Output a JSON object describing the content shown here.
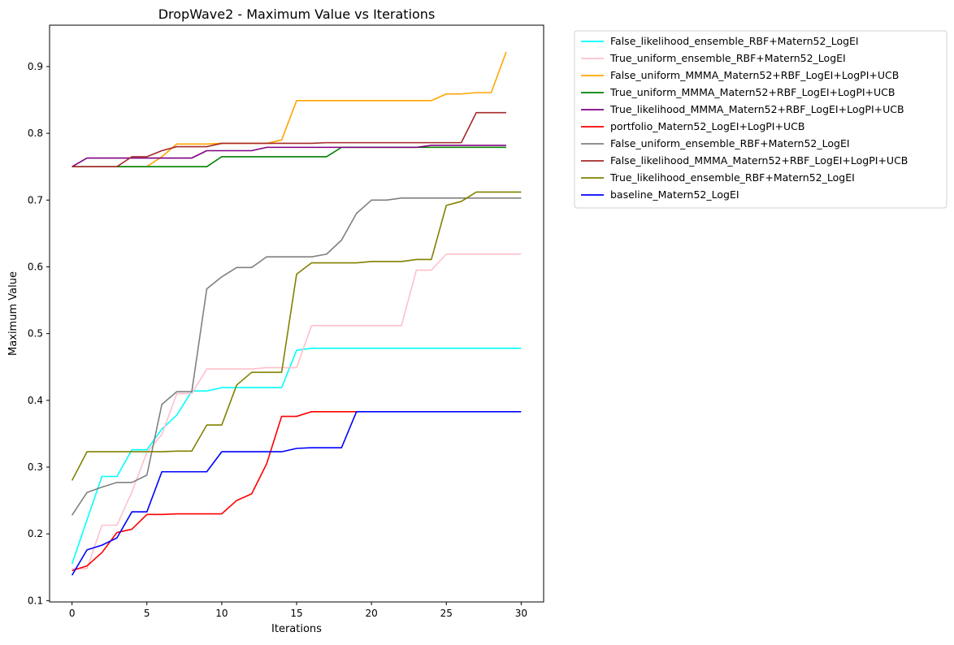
{
  "chart_data": {
    "type": "line",
    "title": "DropWave2 - Maximum Value vs Iterations",
    "xlabel": "Iterations",
    "ylabel": "Maximum Value",
    "xlim": [
      -1.5,
      31.5
    ],
    "ylim": [
      0.098,
      0.962
    ],
    "xticks": [
      0,
      5,
      10,
      15,
      20,
      25,
      30
    ],
    "yticks": [
      0.1,
      0.2,
      0.3,
      0.4,
      0.5,
      0.6,
      0.7,
      0.8,
      0.9
    ],
    "ytick_labels": [
      "0.1",
      "0.2",
      "0.3",
      "0.4",
      "0.5",
      "0.6",
      "0.7",
      "0.8",
      "0.9"
    ],
    "grid": false,
    "legend_position": "outside upper right",
    "series": [
      {
        "name": "False_likelihood_ensemble_RBF+Matern52_LogEI",
        "color": "#00ffff",
        "x": [
          0,
          1,
          2,
          3,
          4,
          5,
          6,
          7,
          8,
          9,
          10,
          11,
          12,
          13,
          14,
          15,
          16,
          17,
          18,
          19,
          20,
          21,
          22,
          23,
          24,
          25,
          26,
          27,
          28,
          29,
          30
        ],
        "values": [
          0.155,
          0.221,
          0.286,
          0.286,
          0.326,
          0.326,
          0.357,
          0.378,
          0.414,
          0.414,
          0.419,
          0.419,
          0.419,
          0.419,
          0.419,
          0.475,
          0.478,
          0.478,
          0.478,
          0.478,
          0.478,
          0.478,
          0.478,
          0.478,
          0.478,
          0.478,
          0.478,
          0.478,
          0.478,
          0.478,
          0.478
        ]
      },
      {
        "name": "True_uniform_ensemble_RBF+Matern52_LogEI",
        "color": "#ffc0cb",
        "x": [
          0,
          1,
          2,
          3,
          4,
          5,
          6,
          7,
          8,
          9,
          10,
          11,
          12,
          13,
          14,
          15,
          16,
          17,
          18,
          19,
          20,
          21,
          22,
          23,
          24,
          25,
          26,
          27,
          28,
          29,
          30
        ],
        "values": [
          0.148,
          0.148,
          0.213,
          0.213,
          0.263,
          0.322,
          0.349,
          0.41,
          0.41,
          0.447,
          0.447,
          0.447,
          0.447,
          0.449,
          0.449,
          0.449,
          0.512,
          0.512,
          0.512,
          0.512,
          0.512,
          0.512,
          0.512,
          0.595,
          0.595,
          0.619,
          0.619,
          0.619,
          0.619,
          0.619,
          0.619
        ]
      },
      {
        "name": "False_uniform_MMMA_Matern52+RBF_LogEI+LogPI+UCB",
        "color": "#ffa500",
        "x": [
          0,
          1,
          2,
          3,
          4,
          5,
          6,
          7,
          8,
          9,
          10,
          11,
          12,
          13,
          14,
          15,
          16,
          17,
          18,
          19,
          20,
          21,
          22,
          23,
          24,
          25,
          26,
          27,
          28,
          29
        ],
        "values": [
          0.75,
          0.75,
          0.75,
          0.75,
          0.75,
          0.75,
          0.765,
          0.784,
          0.784,
          0.784,
          0.785,
          0.785,
          0.785,
          0.785,
          0.79,
          0.849,
          0.849,
          0.849,
          0.849,
          0.849,
          0.849,
          0.849,
          0.849,
          0.849,
          0.849,
          0.859,
          0.859,
          0.861,
          0.861,
          0.922
        ]
      },
      {
        "name": "True_uniform_MMMA_Matern52+RBF_LogEI+LogPI+UCB",
        "color": "#008000",
        "x": [
          0,
          1,
          2,
          3,
          4,
          5,
          6,
          7,
          8,
          9,
          10,
          11,
          12,
          13,
          14,
          15,
          16,
          17,
          18,
          19,
          20,
          21,
          22,
          23,
          24,
          25,
          26,
          27,
          28,
          29
        ],
        "values": [
          0.75,
          0.75,
          0.75,
          0.75,
          0.75,
          0.75,
          0.75,
          0.75,
          0.75,
          0.75,
          0.765,
          0.765,
          0.765,
          0.765,
          0.765,
          0.765,
          0.765,
          0.765,
          0.779,
          0.779,
          0.779,
          0.779,
          0.779,
          0.779,
          0.779,
          0.779,
          0.779,
          0.779,
          0.779,
          0.779
        ]
      },
      {
        "name": "True_likelihood_MMMA_Matern52+RBF_LogEI+LogPI+UCB",
        "color": "#800080",
        "x": [
          0,
          1,
          2,
          3,
          4,
          5,
          6,
          7,
          8,
          9,
          10,
          11,
          12,
          13,
          14,
          15,
          16,
          17,
          18,
          19,
          20,
          21,
          22,
          23,
          24,
          25,
          26,
          27,
          28,
          29
        ],
        "values": [
          0.75,
          0.763,
          0.763,
          0.763,
          0.763,
          0.763,
          0.763,
          0.763,
          0.763,
          0.774,
          0.774,
          0.774,
          0.774,
          0.779,
          0.779,
          0.779,
          0.779,
          0.779,
          0.779,
          0.779,
          0.779,
          0.779,
          0.779,
          0.779,
          0.782,
          0.782,
          0.782,
          0.782,
          0.782,
          0.782
        ]
      },
      {
        "name": "portfolio_Matern52_LogEI+LogPI+UCB",
        "color": "#ff0000",
        "x": [
          0,
          1,
          2,
          3,
          4,
          5,
          6,
          7,
          8,
          9,
          10,
          11,
          12,
          13,
          14,
          15,
          16,
          17,
          18,
          19
        ],
        "values": [
          0.145,
          0.152,
          0.172,
          0.202,
          0.207,
          0.229,
          0.229,
          0.23,
          0.23,
          0.23,
          0.23,
          0.25,
          0.26,
          0.305,
          0.376,
          0.376,
          0.383,
          0.383,
          0.383,
          0.383
        ]
      },
      {
        "name": "False_uniform_ensemble_RBF+Matern52_LogEI",
        "color": "#808080",
        "x": [
          0,
          1,
          2,
          3,
          4,
          5,
          6,
          7,
          8,
          9,
          10,
          11,
          12,
          13,
          14,
          15,
          16,
          17,
          18,
          19,
          20,
          21,
          22,
          23,
          24,
          25,
          26,
          27,
          28,
          29,
          30
        ],
        "values": [
          0.228,
          0.262,
          0.27,
          0.277,
          0.277,
          0.288,
          0.394,
          0.413,
          0.413,
          0.567,
          0.585,
          0.599,
          0.599,
          0.615,
          0.615,
          0.615,
          0.615,
          0.619,
          0.64,
          0.68,
          0.7,
          0.7,
          0.703,
          0.703,
          0.703,
          0.703,
          0.703,
          0.703,
          0.703,
          0.703,
          0.703
        ]
      },
      {
        "name": "False_likelihood_MMMA_Matern52+RBF_LogEI+LogPI+UCB",
        "color": "#a52a2a",
        "x": [
          0,
          1,
          2,
          3,
          4,
          5,
          6,
          7,
          8,
          9,
          10,
          11,
          12,
          13,
          14,
          15,
          16,
          17,
          18,
          19,
          20,
          21,
          22,
          23,
          24,
          25,
          26,
          27,
          28,
          29
        ],
        "values": [
          0.75,
          0.75,
          0.75,
          0.75,
          0.765,
          0.765,
          0.774,
          0.78,
          0.78,
          0.78,
          0.785,
          0.785,
          0.785,
          0.785,
          0.785,
          0.785,
          0.785,
          0.786,
          0.786,
          0.786,
          0.786,
          0.786,
          0.786,
          0.786,
          0.786,
          0.786,
          0.786,
          0.831,
          0.831,
          0.831
        ]
      },
      {
        "name": "True_likelihood_ensemble_RBF+Matern52_LogEI",
        "color": "#808000",
        "x": [
          0,
          1,
          2,
          3,
          4,
          5,
          6,
          7,
          8,
          9,
          10,
          11,
          12,
          13,
          14,
          15,
          16,
          17,
          18,
          19,
          20,
          21,
          22,
          23,
          24,
          25,
          26,
          27,
          28,
          29,
          30
        ],
        "values": [
          0.28,
          0.323,
          0.323,
          0.323,
          0.323,
          0.323,
          0.323,
          0.324,
          0.324,
          0.363,
          0.363,
          0.423,
          0.442,
          0.442,
          0.442,
          0.589,
          0.606,
          0.606,
          0.606,
          0.606,
          0.608,
          0.608,
          0.608,
          0.611,
          0.611,
          0.692,
          0.698,
          0.712,
          0.712,
          0.712,
          0.712
        ]
      },
      {
        "name": "baseline_Matern52_LogEI",
        "color": "#0000ff",
        "x": [
          0,
          1,
          2,
          3,
          4,
          5,
          6,
          7,
          8,
          9,
          10,
          11,
          12,
          13,
          14,
          15,
          16,
          17,
          18,
          19,
          20,
          21,
          22,
          23,
          24,
          25,
          26,
          27,
          28,
          29,
          30
        ],
        "values": [
          0.138,
          0.176,
          0.183,
          0.194,
          0.233,
          0.233,
          0.293,
          0.293,
          0.293,
          0.293,
          0.323,
          0.323,
          0.323,
          0.323,
          0.323,
          0.328,
          0.329,
          0.329,
          0.329,
          0.383,
          0.383,
          0.383,
          0.383,
          0.383,
          0.383,
          0.383,
          0.383,
          0.383,
          0.383,
          0.383,
          0.383
        ]
      }
    ]
  }
}
